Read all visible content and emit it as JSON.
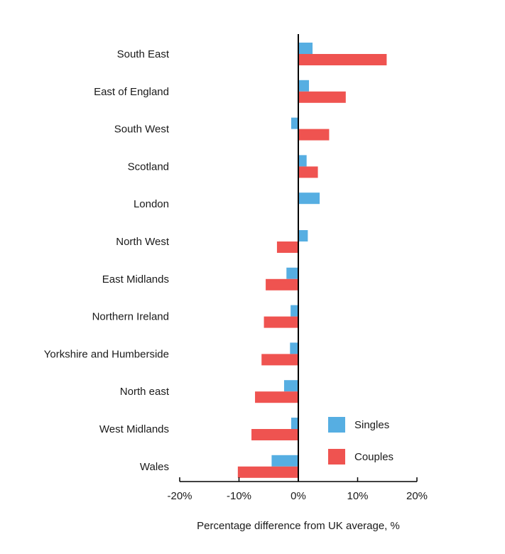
{
  "chart_data": {
    "type": "bar",
    "orientation": "horizontal",
    "xlabel": "Percentage difference from UK average, %",
    "xlim": [
      -20,
      20
    ],
    "xticks": [
      {
        "value": -20,
        "label": "-20%"
      },
      {
        "value": -10,
        "label": "-10%"
      },
      {
        "value": 0,
        "label": "0%"
      },
      {
        "value": 10,
        "label": "10%"
      },
      {
        "value": 20,
        "label": "20%"
      }
    ],
    "grid": false,
    "legend_position": "bottom-right",
    "categories": [
      "South East",
      "East of England",
      "South West",
      "Scotland",
      "London",
      "North West",
      "East Midlands",
      "Northern Ireland",
      "Yorkshire and Humberside",
      "North east",
      "West Midlands",
      "Wales"
    ],
    "series": [
      {
        "name": "Singles",
        "color": "#56aee2",
        "values": [
          2.4,
          1.8,
          -1.2,
          1.4,
          3.6,
          1.6,
          -2.0,
          -1.3,
          -1.4,
          -2.4,
          -1.2,
          -4.5
        ]
      },
      {
        "name": "Couples",
        "color": "#ef5350",
        "values": [
          14.9,
          8.0,
          5.2,
          3.3,
          0,
          -3.6,
          -5.5,
          -5.8,
          -6.2,
          -7.3,
          -7.9,
          -10.2
        ]
      }
    ]
  }
}
